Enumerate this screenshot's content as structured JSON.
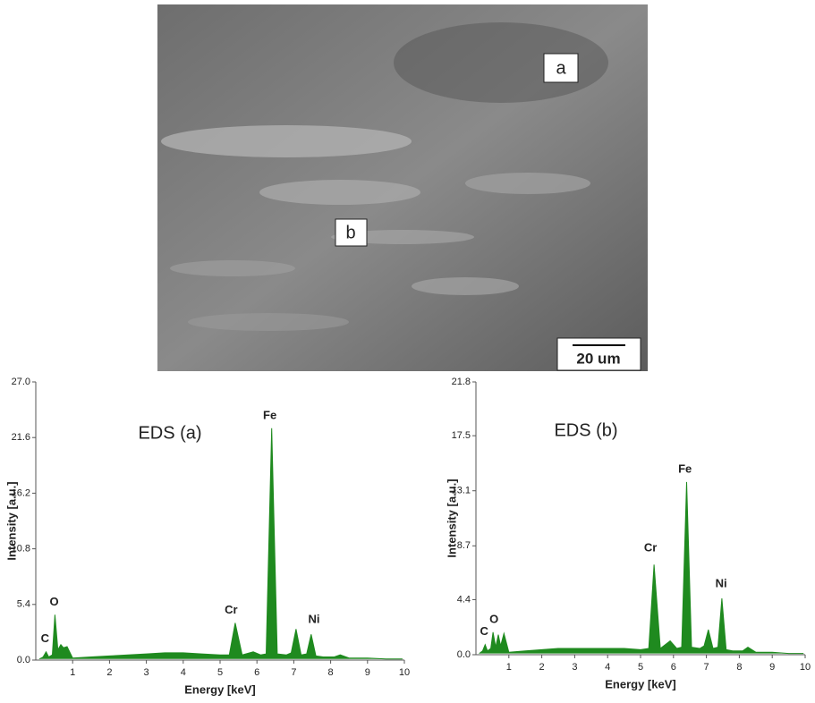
{
  "image": {
    "labels": [
      "a",
      "b"
    ],
    "scale_bar": "20 um"
  },
  "chart_data": [
    {
      "type": "area",
      "title": "EDS (a)",
      "x_label": "Energy [keV]",
      "y_label": "Intensity [a.u.]",
      "annotations": [
        "C",
        "O",
        "Cr",
        "Fe",
        "Ni"
      ],
      "color": "#1f8a1f",
      "x": [
        0.1,
        0.2,
        0.28,
        0.35,
        0.45,
        0.52,
        0.6,
        0.68,
        0.75,
        0.85,
        1.0,
        1.5,
        2.0,
        2.5,
        3.0,
        3.5,
        4.0,
        4.5,
        5.0,
        5.25,
        5.41,
        5.6,
        5.9,
        6.1,
        6.25,
        6.4,
        6.55,
        6.8,
        6.93,
        7.06,
        7.2,
        7.35,
        7.47,
        7.6,
        7.8,
        8.1,
        8.26,
        8.5,
        9.0,
        9.5,
        9.95
      ],
      "values": [
        0.1,
        0.3,
        0.8,
        0.3,
        0.5,
        4.4,
        1.0,
        1.5,
        1.2,
        1.3,
        0.2,
        0.3,
        0.4,
        0.5,
        0.6,
        0.7,
        0.7,
        0.6,
        0.5,
        0.5,
        3.6,
        0.5,
        0.8,
        0.5,
        0.6,
        22.5,
        0.6,
        0.5,
        0.7,
        3.0,
        0.5,
        0.6,
        2.5,
        0.4,
        0.3,
        0.3,
        0.5,
        0.2,
        0.2,
        0.1,
        0.1
      ],
      "xlim": [
        0,
        10
      ],
      "xticks": [
        1,
        2,
        3,
        4,
        5,
        6,
        7,
        8,
        9,
        10
      ],
      "ylim": [
        0,
        27
      ],
      "yticks": [
        {
          "value": 0,
          "label": "0.0"
        },
        {
          "value": 5.4,
          "label": "5.4"
        },
        {
          "value": 10.8,
          "label": "10.8"
        },
        {
          "value": 16.2,
          "label": "16.2"
        },
        {
          "value": 21.6,
          "label": "21.6"
        },
        {
          "value": 27,
          "label": "27.0"
        }
      ]
    },
    {
      "type": "area",
      "title": "EDS (b)",
      "x_label": "Energy [keV]",
      "y_label": "Intensity [a.u.]",
      "annotations": [
        "C",
        "O",
        "Cr",
        "Fe",
        "Ni"
      ],
      "color": "#1f8a1f",
      "x": [
        0.1,
        0.2,
        0.28,
        0.35,
        0.45,
        0.52,
        0.6,
        0.68,
        0.75,
        0.85,
        1.0,
        1.5,
        2.0,
        2.5,
        3.0,
        3.5,
        4.0,
        4.5,
        5.0,
        5.25,
        5.41,
        5.6,
        5.9,
        6.1,
        6.25,
        6.4,
        6.55,
        6.8,
        6.93,
        7.06,
        7.2,
        7.35,
        7.47,
        7.6,
        7.8,
        8.1,
        8.26,
        8.5,
        9.0,
        9.5,
        9.95
      ],
      "values": [
        0.1,
        0.3,
        0.8,
        0.3,
        0.5,
        1.8,
        0.6,
        1.6,
        0.7,
        1.7,
        0.2,
        0.3,
        0.4,
        0.5,
        0.5,
        0.5,
        0.5,
        0.5,
        0.4,
        0.5,
        7.2,
        0.5,
        1.1,
        0.5,
        0.6,
        13.8,
        0.6,
        0.5,
        0.7,
        2.0,
        0.5,
        0.6,
        4.5,
        0.4,
        0.3,
        0.3,
        0.6,
        0.2,
        0.2,
        0.1,
        0.1
      ],
      "xlim": [
        0,
        10
      ],
      "xticks": [
        1,
        2,
        3,
        4,
        5,
        6,
        7,
        8,
        9,
        10
      ],
      "ylim": [
        0,
        21.8
      ],
      "yticks": [
        {
          "value": 0,
          "label": "0.0"
        },
        {
          "value": 4.4,
          "label": "4.4"
        },
        {
          "value": 8.7,
          "label": "8.7"
        },
        {
          "value": 13.1,
          "label": "13.1"
        },
        {
          "value": 17.5,
          "label": "17.5"
        },
        {
          "value": 21.8,
          "label": "21.8"
        }
      ]
    }
  ]
}
